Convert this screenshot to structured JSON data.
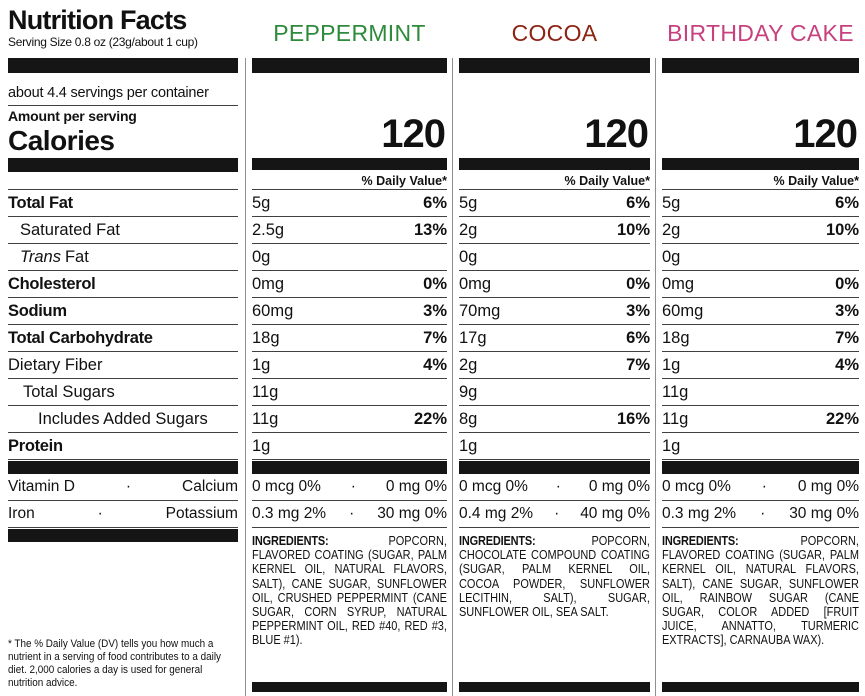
{
  "header": {
    "title": "Nutrition Facts",
    "serving_size": "Serving Size 0.8 oz (23g/about 1 cup)",
    "servings_per_container": "about 4.4 servings per container",
    "amount_per_serving": "Amount per serving",
    "calories_label": "Calories",
    "daily_value_header": "% Daily Value*"
  },
  "nutrients": [
    {
      "label": "Total Fat"
    },
    {
      "label": "Saturated Fat"
    },
    {
      "label_italic": "Trans",
      "label_rest": "Fat"
    },
    {
      "label": "Cholesterol"
    },
    {
      "label": "Sodium"
    },
    {
      "label": "Total Carbohydrate"
    },
    {
      "label": "Dietary Fiber"
    },
    {
      "label": "Total Sugars"
    },
    {
      "label": "Includes Added Sugars"
    },
    {
      "label": "Protein"
    }
  ],
  "micro_rows": [
    {
      "left_label": "Vitamin D",
      "dot": "·",
      "right_label": "Calcium"
    },
    {
      "left_label": "Iron",
      "dot": "·",
      "right_label": "Potassium"
    }
  ],
  "flavors": [
    {
      "name": "PEPPERMINT",
      "color": "#2e8b3c",
      "calories": "120",
      "rows": [
        {
          "amount": "5g",
          "dv": "6%"
        },
        {
          "amount": "2.5g",
          "dv": "13%"
        },
        {
          "amount": "0g",
          "dv": ""
        },
        {
          "amount": "0mg",
          "dv": "0%"
        },
        {
          "amount": "60mg",
          "dv": "3%"
        },
        {
          "amount": "18g",
          "dv": "7%"
        },
        {
          "amount": "1g",
          "dv": "4%"
        },
        {
          "amount": "11g",
          "dv": ""
        },
        {
          "amount": "11g",
          "dv": "22%"
        },
        {
          "amount": "1g",
          "dv": ""
        }
      ],
      "micro": [
        {
          "left": "0 mcg 0%",
          "dot": "·",
          "right": "0 mg 0%"
        },
        {
          "left": "0.3 mg 2%",
          "dot": "·",
          "right": "30 mg 0%"
        }
      ],
      "ingredients_label": "INGREDIENTS:",
      "ingredients": "POPCORN, FLAVORED COATING (SUGAR, PALM KERNEL OIL, NATURAL FLAVORS, SALT), CANE SUGAR, SUNFLOWER OIL, CRUSHED PEPPERMINT (CANE SUGAR, CORN SYRUP, NATURAL PEPPERMINT OIL, RED #40, RED #3, BLUE #1)."
    },
    {
      "name": "COCOA",
      "color": "#8c2414",
      "calories": "120",
      "rows": [
        {
          "amount": "5g",
          "dv": "6%"
        },
        {
          "amount": "2g",
          "dv": "10%"
        },
        {
          "amount": "0g",
          "dv": ""
        },
        {
          "amount": "0mg",
          "dv": "0%"
        },
        {
          "amount": "70mg",
          "dv": "3%"
        },
        {
          "amount": "17g",
          "dv": "6%"
        },
        {
          "amount": "2g",
          "dv": "7%"
        },
        {
          "amount": "9g",
          "dv": ""
        },
        {
          "amount": "8g",
          "dv": "16%"
        },
        {
          "amount": "1g",
          "dv": ""
        }
      ],
      "micro": [
        {
          "left": "0 mcg 0%",
          "dot": "·",
          "right": "0 mg 0%"
        },
        {
          "left": "0.4 mg 2%",
          "dot": "·",
          "right": "40 mg 0%"
        }
      ],
      "ingredients_label": "INGREDIENTS:",
      "ingredients": "POPCORN, CHOCOLATE COMPOUND COATING (SUGAR, PALM KERNEL OIL, COCOA POWDER, SUNFLOWER LECITHIN, SALT), SUGAR, SUNFLOWER OIL, SEA SALT."
    },
    {
      "name": "BIRTHDAY CAKE",
      "color": "#c7417f",
      "calories": "120",
      "rows": [
        {
          "amount": "5g",
          "dv": "6%"
        },
        {
          "amount": "2g",
          "dv": "10%"
        },
        {
          "amount": "0g",
          "dv": ""
        },
        {
          "amount": "0mg",
          "dv": "0%"
        },
        {
          "amount": "60mg",
          "dv": "3%"
        },
        {
          "amount": "18g",
          "dv": "7%"
        },
        {
          "amount": "1g",
          "dv": "4%"
        },
        {
          "amount": "11g",
          "dv": ""
        },
        {
          "amount": "11g",
          "dv": "22%"
        },
        {
          "amount": "1g",
          "dv": ""
        }
      ],
      "micro": [
        {
          "left": "0 mcg 0%",
          "dot": "·",
          "right": "0 mg 0%"
        },
        {
          "left": "0.3 mg 2%",
          "dot": "·",
          "right": "30 mg 0%"
        }
      ],
      "ingredients_label": "INGREDIENTS:",
      "ingredients": "POPCORN, FLAVORED COATING (SUGAR, PALM KERNEL OIL, NATURAL FLAVORS, SALT), CANE SUGAR, SUNFLOWER OIL, RAINBOW SUGAR (CANE SUGAR, COLOR ADDED [FRUIT JUICE, ANNATTO, TURMERIC EXTRACTS], CARNAUBA WAX)."
    }
  ],
  "footnote": "* The % Daily Value (DV) tells you how much a nutrient in a serving of food contributes to a daily diet. 2,000 calories a day is used for general nutrition advice."
}
